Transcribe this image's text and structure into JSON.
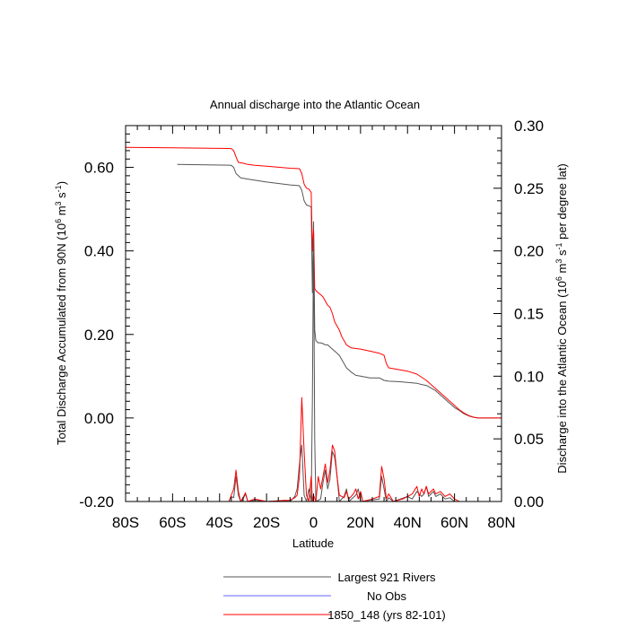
{
  "chart_data": {
    "type": "line",
    "title": "Annual discharge into the Atlantic Ocean",
    "xlabel": "Latitude",
    "ylabel_left": "Total Discharge Accumulated from 90N (10^6 m^3 s^-1)",
    "ylabel_right": "Discharge into the Atlantic Ocean (10^6 m^3 s^-1 per degree lat)",
    "xlim": [
      -80,
      80
    ],
    "ylim_left": [
      -0.2,
      0.7
    ],
    "ylim_right": [
      0.0,
      0.3
    ],
    "x_ticks": [
      {
        "value": -80,
        "label": "80S"
      },
      {
        "value": -60,
        "label": "60S"
      },
      {
        "value": -40,
        "label": "40S"
      },
      {
        "value": -20,
        "label": "20S"
      },
      {
        "value": 0,
        "label": "0"
      },
      {
        "value": 20,
        "label": "20N"
      },
      {
        "value": 40,
        "label": "40N"
      },
      {
        "value": 60,
        "label": "60N"
      },
      {
        "value": 80,
        "label": "80N"
      }
    ],
    "y_ticks_left": [
      {
        "value": -0.2,
        "label": "-0.20"
      },
      {
        "value": 0.0,
        "label": "0.00"
      },
      {
        "value": 0.2,
        "label": "0.20"
      },
      {
        "value": 0.4,
        "label": "0.40"
      },
      {
        "value": 0.6,
        "label": "0.60"
      }
    ],
    "y_ticks_right": [
      {
        "value": 0.0,
        "label": "0.00"
      },
      {
        "value": 0.05,
        "label": "0.05"
      },
      {
        "value": 0.1,
        "label": "0.10"
      },
      {
        "value": 0.15,
        "label": "0.15"
      },
      {
        "value": 0.2,
        "label": "0.20"
      },
      {
        "value": 0.25,
        "label": "0.25"
      },
      {
        "value": 0.3,
        "label": "0.30"
      }
    ],
    "grid": false,
    "legend_position": "bottom",
    "series": [
      {
        "name": "Largest 921 Rivers",
        "color": "#555555",
        "axis": "left",
        "points": [
          [
            -58,
            0.607
          ],
          [
            -35,
            0.605
          ],
          [
            -34,
            0.6
          ],
          [
            -33,
            0.585
          ],
          [
            -31,
            0.575
          ],
          [
            -28,
            0.572
          ],
          [
            -20,
            0.565
          ],
          [
            -10,
            0.558
          ],
          [
            -6,
            0.556
          ],
          [
            -5,
            0.545
          ],
          [
            -4,
            0.52
          ],
          [
            -3,
            0.51
          ],
          [
            -2,
            0.508
          ],
          [
            -1,
            0.505
          ],
          [
            -0.5,
            0.3
          ],
          [
            0,
            0.47
          ],
          [
            0.5,
            0.21
          ],
          [
            1,
            0.185
          ],
          [
            2,
            0.18
          ],
          [
            3,
            0.18
          ],
          [
            4,
            0.178
          ],
          [
            5,
            0.175
          ],
          [
            6,
            0.175
          ],
          [
            7,
            0.17
          ],
          [
            9,
            0.16
          ],
          [
            11,
            0.15
          ],
          [
            12,
            0.14
          ],
          [
            14,
            0.12
          ],
          [
            16,
            0.11
          ],
          [
            18,
            0.102
          ],
          [
            20,
            0.1
          ],
          [
            22,
            0.098
          ],
          [
            24,
            0.096
          ],
          [
            28,
            0.096
          ],
          [
            30,
            0.09
          ],
          [
            32,
            0.088
          ],
          [
            36,
            0.087
          ],
          [
            40,
            0.085
          ],
          [
            44,
            0.083
          ],
          [
            46,
            0.08
          ],
          [
            48,
            0.078
          ],
          [
            50,
            0.072
          ],
          [
            52,
            0.065
          ],
          [
            55,
            0.05
          ],
          [
            58,
            0.035
          ],
          [
            60,
            0.025
          ],
          [
            62,
            0.018
          ],
          [
            64,
            0.01
          ],
          [
            66,
            0.005
          ],
          [
            68,
            0.002
          ],
          [
            70,
            0.0
          ],
          [
            80,
            0.0
          ]
        ]
      },
      {
        "name": "No Obs",
        "color": "#6666ff",
        "axis": "left",
        "points": []
      },
      {
        "name": "1850_148 (yrs 82-101)",
        "color": "#ff0000",
        "axis": "left",
        "points": [
          [
            -80,
            0.648
          ],
          [
            -60,
            0.647
          ],
          [
            -35,
            0.645
          ],
          [
            -34,
            0.64
          ],
          [
            -33,
            0.625
          ],
          [
            -32,
            0.612
          ],
          [
            -30,
            0.61
          ],
          [
            -28,
            0.607
          ],
          [
            -25,
            0.605
          ],
          [
            -20,
            0.603
          ],
          [
            -10,
            0.598
          ],
          [
            -6,
            0.597
          ],
          [
            -5,
            0.585
          ],
          [
            -4,
            0.56
          ],
          [
            -3,
            0.55
          ],
          [
            -2,
            0.548
          ],
          [
            -1,
            0.54
          ],
          [
            -0.5,
            0.4
          ],
          [
            0,
            0.45
          ],
          [
            0.5,
            0.31
          ],
          [
            1,
            0.305
          ],
          [
            2,
            0.3
          ],
          [
            3,
            0.295
          ],
          [
            4,
            0.29
          ],
          [
            5,
            0.28
          ],
          [
            6,
            0.27
          ],
          [
            7,
            0.265
          ],
          [
            8,
            0.25
          ],
          [
            9,
            0.23
          ],
          [
            11,
            0.21
          ],
          [
            12,
            0.195
          ],
          [
            14,
            0.175
          ],
          [
            16,
            0.168
          ],
          [
            20,
            0.165
          ],
          [
            24,
            0.16
          ],
          [
            28,
            0.155
          ],
          [
            30,
            0.15
          ],
          [
            31,
            0.13
          ],
          [
            32,
            0.12
          ],
          [
            36,
            0.116
          ],
          [
            40,
            0.112
          ],
          [
            44,
            0.105
          ],
          [
            48,
            0.09
          ],
          [
            50,
            0.08
          ],
          [
            52,
            0.07
          ],
          [
            55,
            0.055
          ],
          [
            58,
            0.04
          ],
          [
            60,
            0.03
          ],
          [
            62,
            0.02
          ],
          [
            64,
            0.012
          ],
          [
            66,
            0.006
          ],
          [
            68,
            0.002
          ],
          [
            70,
            0.0
          ],
          [
            80,
            0.0
          ]
        ]
      },
      {
        "name": "Largest 921 Rivers",
        "color": "#555555",
        "axis": "right",
        "points": [
          [
            -80,
            0.0
          ],
          [
            -36,
            0.0
          ],
          [
            -35,
            0.004
          ],
          [
            -34,
            0.003
          ],
          [
            -33,
            0.02
          ],
          [
            -32,
            0.005
          ],
          [
            -31,
            0.0
          ],
          [
            -30,
            0.002
          ],
          [
            -29,
            0.006
          ],
          [
            -28,
            0.0
          ],
          [
            -25,
            0.001
          ],
          [
            -20,
            0.0
          ],
          [
            -12,
            0.001
          ],
          [
            -10,
            0.0
          ],
          [
            -8,
            0.004
          ],
          [
            -7,
            0.01
          ],
          [
            -6,
            0.03
          ],
          [
            -5,
            0.045
          ],
          [
            -4,
            0.005
          ],
          [
            -3,
            0.0
          ],
          [
            -2,
            0.01
          ],
          [
            -1,
            0.0
          ],
          [
            -0.5,
            0.08
          ],
          [
            0,
            0.21
          ],
          [
            0.5,
            0.05
          ],
          [
            1,
            0.0
          ],
          [
            3,
            0.002
          ],
          [
            4,
            0.015
          ],
          [
            5,
            0.025
          ],
          [
            6,
            0.01
          ],
          [
            7,
            0.018
          ],
          [
            8,
            0.04
          ],
          [
            9,
            0.035
          ],
          [
            10,
            0.02
          ],
          [
            11,
            0.0
          ],
          [
            13,
            0.004
          ],
          [
            14,
            0.01
          ],
          [
            15,
            0.0
          ],
          [
            18,
            0.005
          ],
          [
            19,
            0.01
          ],
          [
            20,
            0.0
          ],
          [
            28,
            0.002
          ],
          [
            29,
            0.02
          ],
          [
            30,
            0.01
          ],
          [
            31,
            0.0
          ],
          [
            32,
            0.003
          ],
          [
            34,
            0.0
          ],
          [
            40,
            0.004
          ],
          [
            42,
            0.002
          ],
          [
            44,
            0.008
          ],
          [
            46,
            0.004
          ],
          [
            47,
            0.006
          ],
          [
            48,
            0.012
          ],
          [
            49,
            0.004
          ],
          [
            50,
            0.006
          ],
          [
            51,
            0.008
          ],
          [
            52,
            0.004
          ],
          [
            54,
            0.006
          ],
          [
            56,
            0.002
          ],
          [
            58,
            0.003
          ],
          [
            60,
            0.0
          ],
          [
            80,
            0.0
          ]
        ]
      },
      {
        "name": "1850_148 (yrs 82-101)",
        "color": "#ff0000",
        "axis": "right",
        "points": [
          [
            -80,
            0.0
          ],
          [
            -36,
            0.0
          ],
          [
            -35,
            0.005
          ],
          [
            -34,
            0.01
          ],
          [
            -33,
            0.025
          ],
          [
            -32,
            0.008
          ],
          [
            -31,
            0.0
          ],
          [
            -30,
            0.003
          ],
          [
            -29,
            0.007
          ],
          [
            -28,
            0.0
          ],
          [
            -25,
            0.002
          ],
          [
            -20,
            0.0
          ],
          [
            -10,
            0.001
          ],
          [
            -8,
            0.003
          ],
          [
            -7,
            0.005
          ],
          [
            -6,
            0.02
          ],
          [
            -5,
            0.083
          ],
          [
            -4,
            0.04
          ],
          [
            -3,
            0.005
          ],
          [
            -2,
            0.0
          ],
          [
            -1,
            0.02
          ],
          [
            -0.5,
            0.0
          ],
          [
            0,
            0.005
          ],
          [
            1,
            0.0
          ],
          [
            2,
            0.02
          ],
          [
            3,
            0.01
          ],
          [
            4,
            0.02
          ],
          [
            5,
            0.03
          ],
          [
            6,
            0.015
          ],
          [
            7,
            0.025
          ],
          [
            8,
            0.045
          ],
          [
            9,
            0.04
          ],
          [
            10,
            0.02
          ],
          [
            11,
            0.005
          ],
          [
            13,
            0.003
          ],
          [
            14,
            0.008
          ],
          [
            15,
            0.002
          ],
          [
            17,
            0.006
          ],
          [
            18,
            0.01
          ],
          [
            19,
            0.002
          ],
          [
            20,
            0.008
          ],
          [
            21,
            0.0
          ],
          [
            25,
            0.002
          ],
          [
            28,
            0.004
          ],
          [
            29,
            0.028
          ],
          [
            30,
            0.018
          ],
          [
            31,
            0.002
          ],
          [
            32,
            0.006
          ],
          [
            34,
            0.0
          ],
          [
            38,
            0.002
          ],
          [
            40,
            0.004
          ],
          [
            42,
            0.006
          ],
          [
            44,
            0.012
          ],
          [
            45,
            0.004
          ],
          [
            46,
            0.01
          ],
          [
            47,
            0.006
          ],
          [
            48,
            0.012
          ],
          [
            49,
            0.006
          ],
          [
            50,
            0.008
          ],
          [
            51,
            0.01
          ],
          [
            52,
            0.006
          ],
          [
            54,
            0.008
          ],
          [
            56,
            0.004
          ],
          [
            58,
            0.006
          ],
          [
            60,
            0.002
          ],
          [
            62,
            0.0
          ],
          [
            80,
            0.0
          ]
        ]
      }
    ],
    "legend": [
      {
        "label": "Largest 921 Rivers",
        "color": "#555555"
      },
      {
        "label": "No Obs",
        "color": "#6666ff"
      },
      {
        "label": "1850_148 (yrs 82-101)",
        "color": "#ff0000"
      }
    ]
  }
}
